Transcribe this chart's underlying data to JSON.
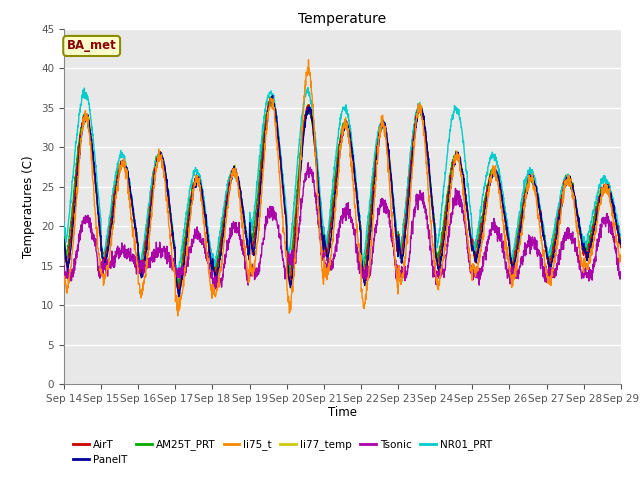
{
  "title": "Temperature",
  "xlabel": "Time",
  "ylabel": "Temperatures (C)",
  "ylim": [
    0,
    45
  ],
  "yticks": [
    0,
    5,
    10,
    15,
    20,
    25,
    30,
    35,
    40,
    45
  ],
  "annotation_text": "BA_met",
  "annotation_color": "#8B0000",
  "annotation_bg": "#FFFFCC",
  "annotation_border": "#8B8B00",
  "x_tick_labels": [
    "Sep 14",
    "Sep 15",
    "Sep 16",
    "Sep 17",
    "Sep 18",
    "Sep 19",
    "Sep 20",
    "Sep 21",
    "Sep 22",
    "Sep 23",
    "Sep 24",
    "Sep 25",
    "Sep 26",
    "Sep 27",
    "Sep 28",
    "Sep 29"
  ],
  "series_colors": {
    "AirT": "#CC0000",
    "PanelT": "#000099",
    "AM25T_PRT": "#00AA00",
    "li75_t": "#FF8800",
    "li77_temp": "#CCCC00",
    "Tsonic": "#AA00AA",
    "NR01_PRT": "#00CCCC"
  },
  "legend_order": [
    "AirT",
    "PanelT",
    "AM25T_PRT",
    "li75_t",
    "li77_temp",
    "Tsonic",
    "NR01_PRT"
  ],
  "plot_bg": "#E8E8E8",
  "linewidth": 1.0
}
